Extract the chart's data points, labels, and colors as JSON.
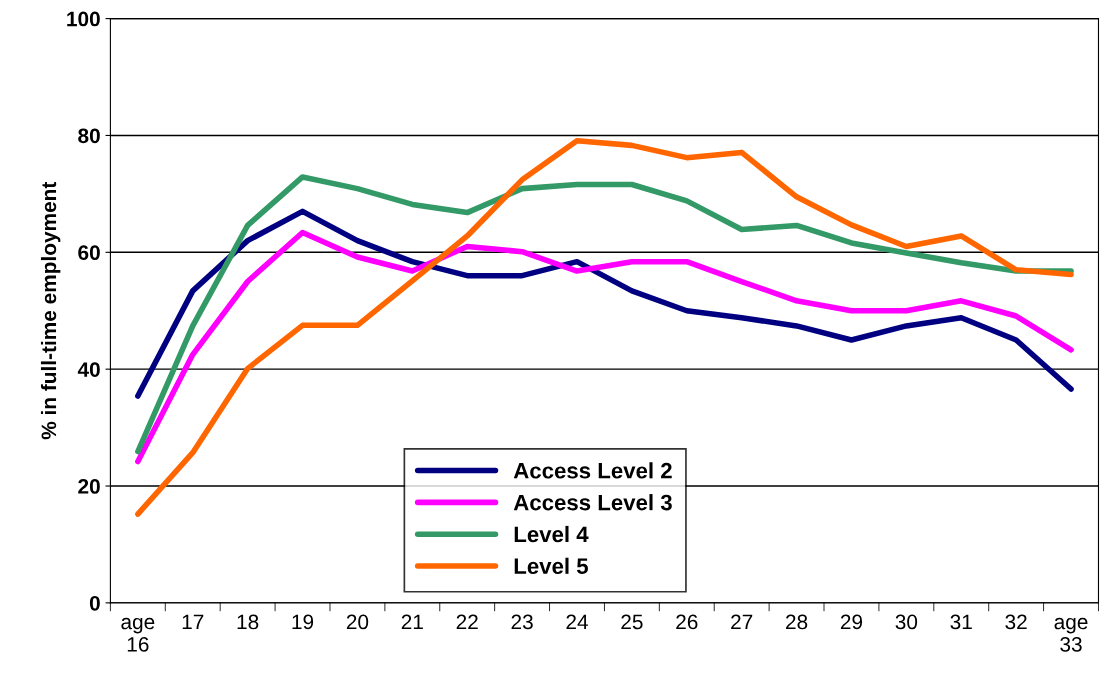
{
  "chart_data": {
    "type": "line",
    "ylabel": "% in full-time employment",
    "categories": [
      "age\n16",
      "17",
      "18",
      "19",
      "20",
      "21",
      "22",
      "23",
      "24",
      "25",
      "26",
      "27",
      "28",
      "29",
      "30",
      "31",
      "32",
      "age\n33"
    ],
    "series": [
      {
        "name": "Access Level 2",
        "color": "#000080",
        "values": [
          35.4,
          53.4,
          62,
          67,
          62,
          58.4,
          56,
          56,
          58.4,
          53.4,
          50,
          48.8,
          47.4,
          45,
          47.4,
          48.8,
          45,
          36.6
        ]
      },
      {
        "name": "Access Level 3",
        "color": "#ff00ff",
        "values": [
          24.2,
          42.5,
          55,
          63.4,
          59.2,
          56.8,
          61,
          60.1,
          56.8,
          58.4,
          58.4,
          55,
          51.7,
          50,
          50,
          51.7,
          49.1,
          43.3
        ]
      },
      {
        "name": "Level 4",
        "color": "#339966",
        "values": [
          25.9,
          47.4,
          64.6,
          72.9,
          70.9,
          68.2,
          66.8,
          70.9,
          71.6,
          71.6,
          68.8,
          63.9,
          64.6,
          61.6,
          59.9,
          58.2,
          56.8,
          56.8
        ]
      },
      {
        "name": "Level 5",
        "color": "#ff6600",
        "values": [
          15.2,
          25.7,
          40.1,
          47.5,
          47.5,
          55.1,
          62.8,
          72.4,
          79.1,
          78.3,
          76.2,
          77.1,
          69.5,
          64.7,
          61,
          62.8,
          57,
          56.2
        ]
      }
    ],
    "ylim": [
      0,
      100
    ],
    "yticks": [
      0,
      20,
      40,
      60,
      80,
      100
    ],
    "grid": "y",
    "legend": "bottom",
    "marker": "none",
    "line_style": "solid"
  }
}
